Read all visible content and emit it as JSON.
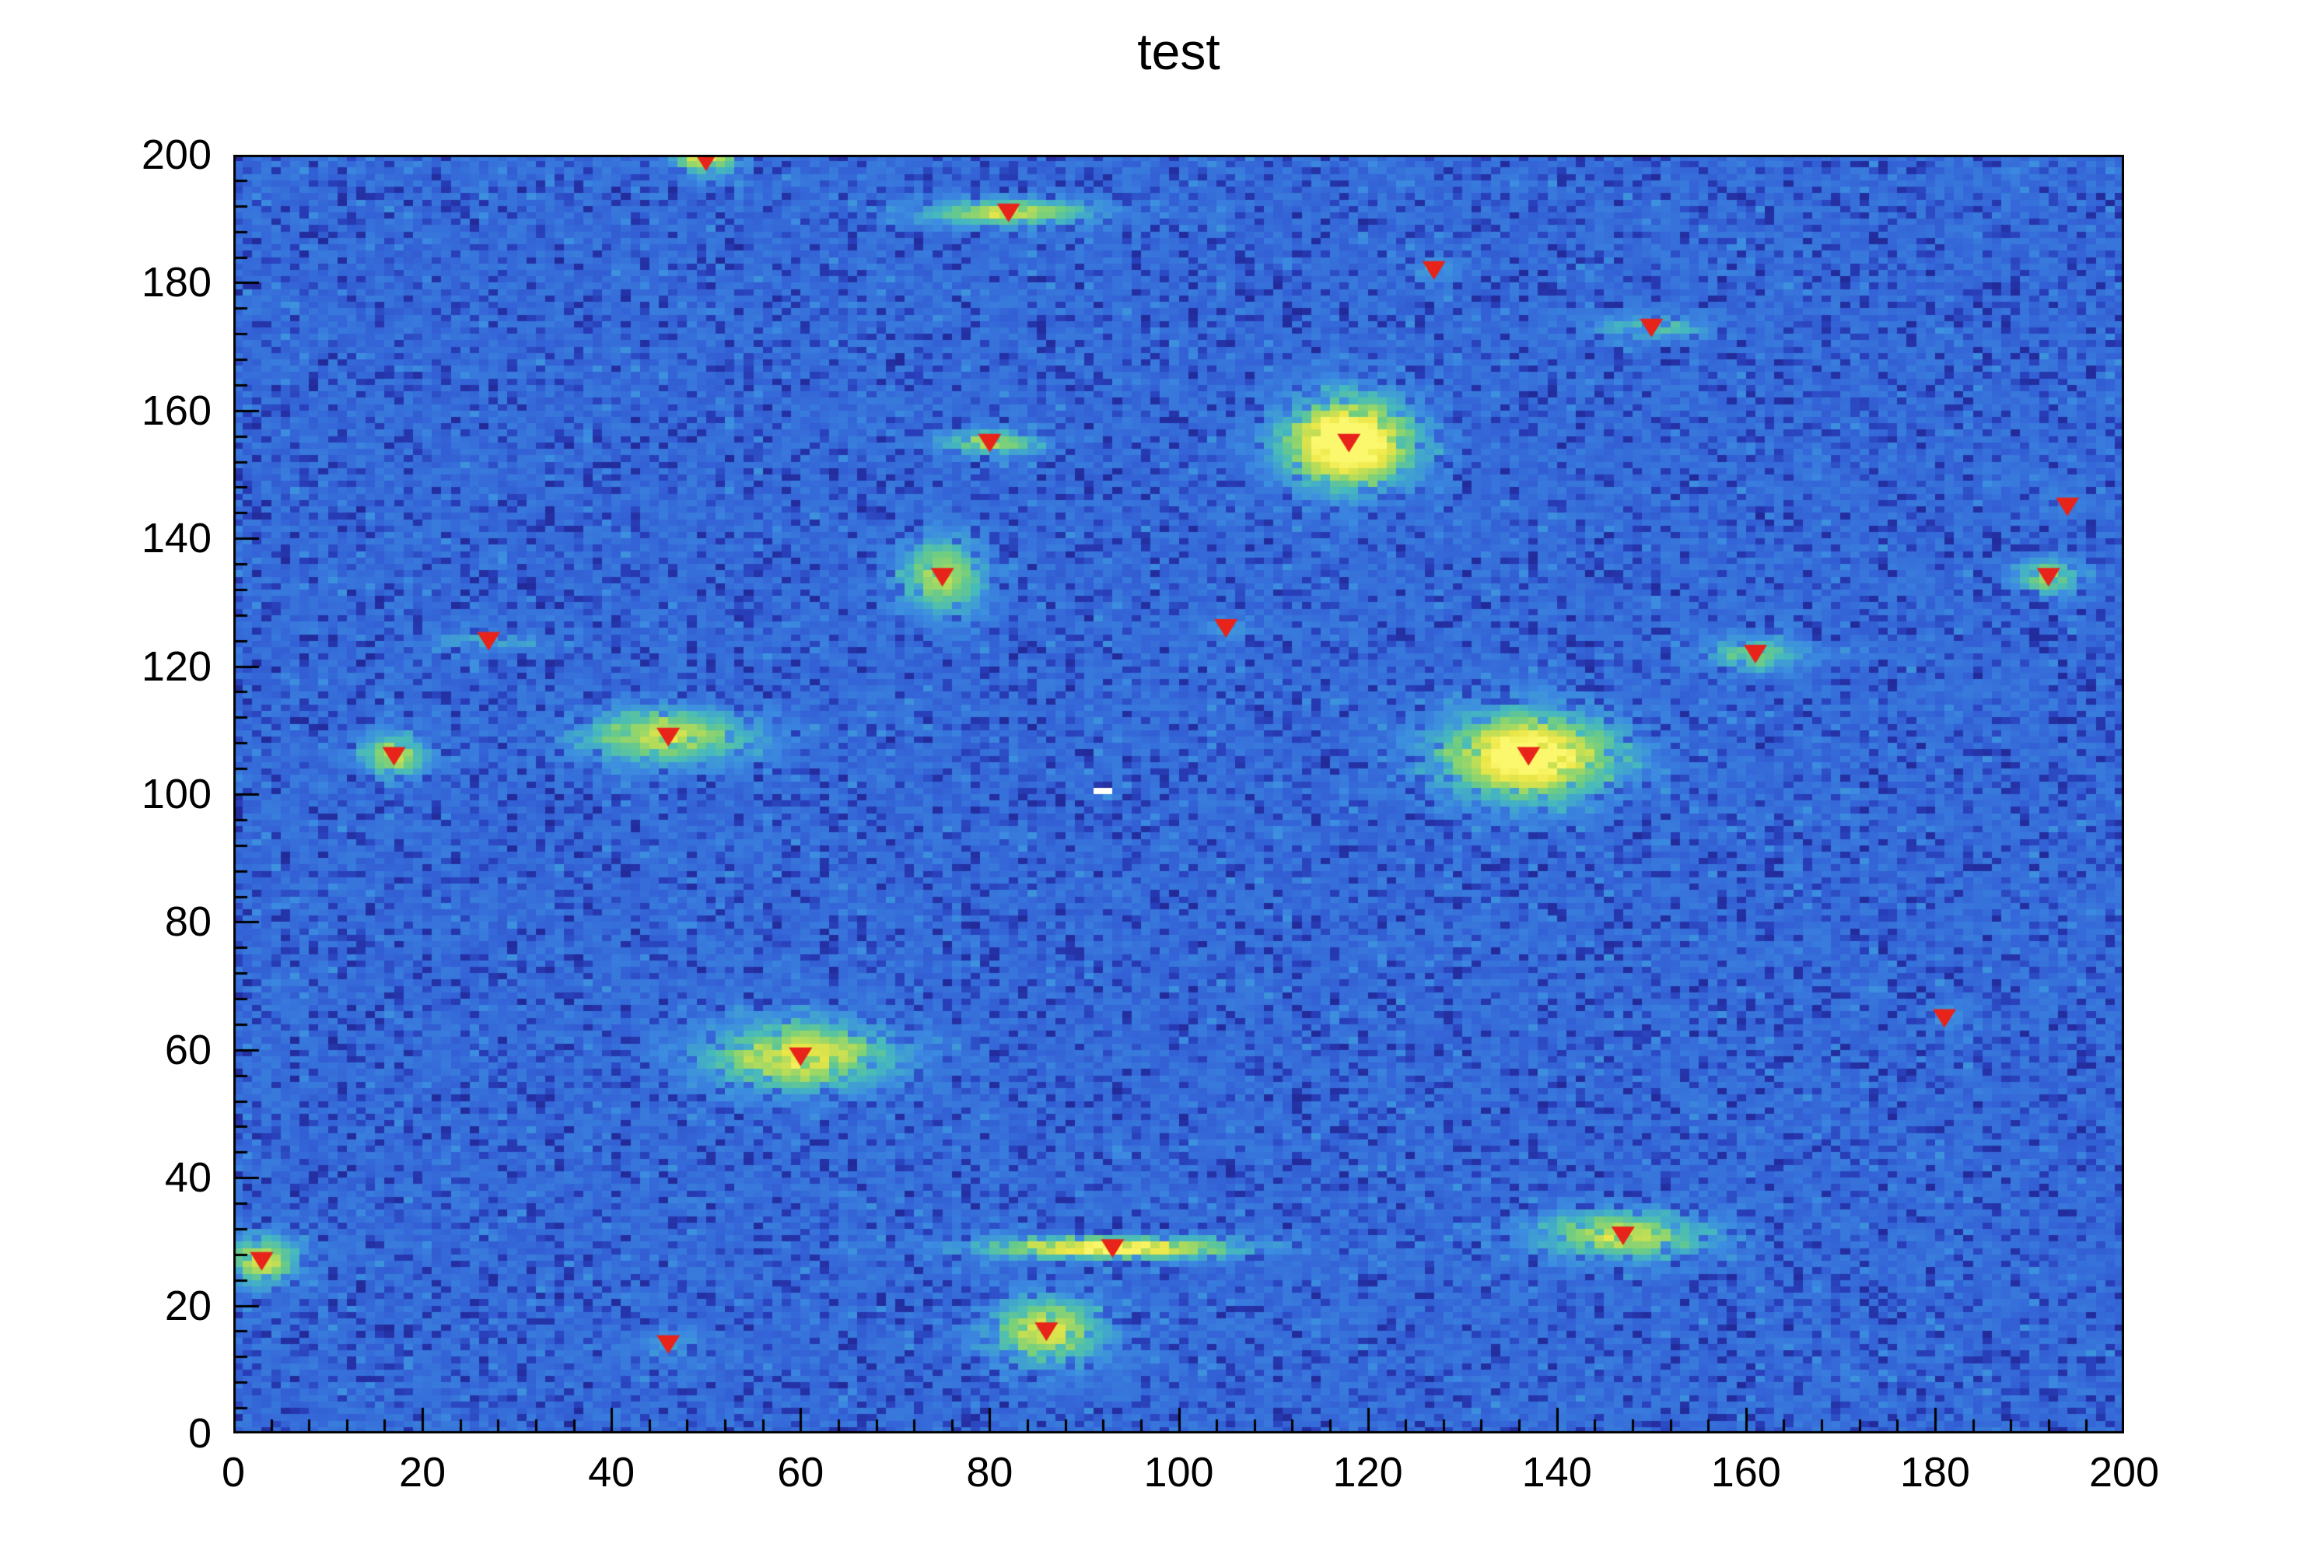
{
  "title": "test",
  "chart_data": {
    "type": "heatmap",
    "title": "test",
    "xlabel": "",
    "ylabel": "",
    "xlim": [
      0,
      200
    ],
    "ylim": [
      0,
      200
    ],
    "bins": [
      200,
      200
    ],
    "xticks": [
      0,
      20,
      40,
      60,
      80,
      100,
      120,
      140,
      160,
      180,
      200
    ],
    "yticks": [
      0,
      20,
      40,
      60,
      80,
      100,
      120,
      140,
      160,
      180,
      200
    ],
    "minor_tick_step": 4,
    "grid": false,
    "legend": "none",
    "frame_color": "#000000",
    "marker_color": "#e8231a",
    "marker_shape": "triangle-down",
    "background_noise": {
      "base_min": 0.2,
      "base_max": 0.3,
      "dark_fraction": 0.17,
      "dark_min": 0.02,
      "dark_max": 0.16,
      "light_fraction": 0.03,
      "light_min": 0.31,
      "light_max": 0.37,
      "seed": 987654321
    },
    "palette": [
      [
        0.0,
        [
          33,
          37,
          145
        ]
      ],
      [
        0.1,
        [
          40,
          62,
          185
        ]
      ],
      [
        0.22,
        [
          52,
          100,
          215
        ]
      ],
      [
        0.35,
        [
          60,
          140,
          225
        ]
      ],
      [
        0.5,
        [
          70,
          185,
          190
        ]
      ],
      [
        0.62,
        [
          110,
          205,
          130
        ]
      ],
      [
        0.75,
        [
          180,
          220,
          90
        ]
      ],
      [
        0.88,
        [
          235,
          230,
          70
        ]
      ],
      [
        1.0,
        [
          252,
          248,
          110
        ]
      ]
    ],
    "sources": [
      {
        "x": 50,
        "y": 200,
        "amp": 0.7,
        "sx": 2.2,
        "sy": 2.0
      },
      {
        "x": 82,
        "y": 191,
        "amp": 0.55,
        "sx": 6.0,
        "sy": 1.4
      },
      {
        "x": 127,
        "y": 182,
        "amp": 0.12,
        "sx": 2.0,
        "sy": 1.5
      },
      {
        "x": 150,
        "y": 173,
        "amp": 0.3,
        "sx": 4.5,
        "sy": 1.2
      },
      {
        "x": 80,
        "y": 155,
        "amp": 0.5,
        "sx": 3.5,
        "sy": 1.3
      },
      {
        "x": 118,
        "y": 155,
        "amp": 1.0,
        "sx": 4.5,
        "sy": 4.5
      },
      {
        "x": 194,
        "y": 145,
        "amp": 0.08,
        "sx": 2.0,
        "sy": 2.0
      },
      {
        "x": 192,
        "y": 134,
        "amp": 0.5,
        "sx": 2.2,
        "sy": 1.8
      },
      {
        "x": 75,
        "y": 134,
        "amp": 0.5,
        "sx": 3.0,
        "sy": 4.0
      },
      {
        "x": 105,
        "y": 126,
        "amp": 0.1,
        "sx": 2.0,
        "sy": 1.5
      },
      {
        "x": 27,
        "y": 124,
        "amp": 0.25,
        "sx": 3.5,
        "sy": 1.0
      },
      {
        "x": 161,
        "y": 122,
        "amp": 0.35,
        "sx": 3.5,
        "sy": 1.8
      },
      {
        "x": 46,
        "y": 109,
        "amp": 0.55,
        "sx": 6.0,
        "sy": 2.8
      },
      {
        "x": 17,
        "y": 106,
        "amp": 0.55,
        "sx": 2.2,
        "sy": 2.2
      },
      {
        "x": 137,
        "y": 106,
        "amp": 0.88,
        "sx": 6.0,
        "sy": 4.5
      },
      {
        "x": 181,
        "y": 65,
        "amp": 0.1,
        "sx": 1.5,
        "sy": 1.5
      },
      {
        "x": 60,
        "y": 59,
        "amp": 0.65,
        "sx": 6.5,
        "sy": 3.5
      },
      {
        "x": 147,
        "y": 31,
        "amp": 0.55,
        "sx": 6.0,
        "sy": 2.5
      },
      {
        "x": 93,
        "y": 29,
        "amp": 0.8,
        "sx": 9.0,
        "sy": 1.1
      },
      {
        "x": 3,
        "y": 27,
        "amp": 0.6,
        "sx": 2.5,
        "sy": 2.5
      },
      {
        "x": 86,
        "y": 16,
        "amp": 0.6,
        "sx": 4.0,
        "sy": 3.5
      },
      {
        "x": 46,
        "y": 14,
        "amp": 0.18,
        "sx": 2.0,
        "sy": 1.5
      }
    ],
    "markers": [
      {
        "x": 50,
        "y": 199
      },
      {
        "x": 82,
        "y": 191
      },
      {
        "x": 127,
        "y": 182
      },
      {
        "x": 150,
        "y": 173
      },
      {
        "x": 80,
        "y": 155
      },
      {
        "x": 118,
        "y": 155
      },
      {
        "x": 194,
        "y": 145
      },
      {
        "x": 192,
        "y": 134
      },
      {
        "x": 75,
        "y": 134
      },
      {
        "x": 105,
        "y": 126
      },
      {
        "x": 27,
        "y": 124
      },
      {
        "x": 161,
        "y": 122
      },
      {
        "x": 46,
        "y": 109
      },
      {
        "x": 17,
        "y": 106
      },
      {
        "x": 137,
        "y": 106
      },
      {
        "x": 181,
        "y": 65
      },
      {
        "x": 60,
        "y": 59
      },
      {
        "x": 147,
        "y": 31
      },
      {
        "x": 93,
        "y": 29
      },
      {
        "x": 3,
        "y": 27
      },
      {
        "x": 86,
        "y": 16
      },
      {
        "x": 46,
        "y": 14
      }
    ],
    "white_bins": [
      [
        91,
        100
      ],
      [
        92,
        100
      ]
    ]
  }
}
